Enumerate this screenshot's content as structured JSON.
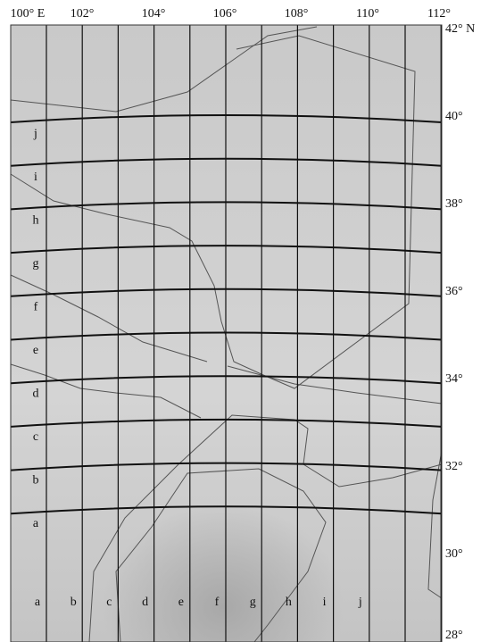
{
  "lon_labels": [
    "100° E",
    "102°",
    "104°",
    "106°",
    "108°",
    "110°",
    "112°"
  ],
  "lat_labels": [
    "42° N",
    "40°",
    "38°",
    "36°",
    "34°",
    "32°",
    "30°",
    "28°"
  ],
  "row_labels": [
    "a",
    "b",
    "c",
    "d",
    "e",
    "f",
    "g",
    "h",
    "i",
    "j"
  ],
  "col_labels": [
    "a",
    "b",
    "c",
    "d",
    "e",
    "f",
    "g",
    "h",
    "i",
    "j"
  ]
}
